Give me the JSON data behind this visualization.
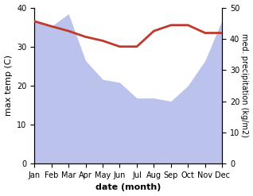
{
  "months": [
    "Jan",
    "Feb",
    "Mar",
    "Apr",
    "May",
    "Jun",
    "Jul",
    "Aug",
    "Sep",
    "Oct",
    "Nov",
    "Dec"
  ],
  "precipitation": [
    46,
    44,
    48,
    33,
    27,
    26,
    21,
    21,
    20,
    25,
    33,
    46
  ],
  "max_temp": [
    36.5,
    35.2,
    34.0,
    32.5,
    31.5,
    30.0,
    30.0,
    34.0,
    35.5,
    35.5,
    33.5,
    33.5
  ],
  "precip_color": "#b0b8e8",
  "temp_color": "#c0392b",
  "temp_ylim": [
    0,
    40
  ],
  "precip_ylim": [
    0,
    50
  ],
  "xlabel": "date (month)",
  "ylabel_left": "max temp (C)",
  "ylabel_right": "med. precipitation (kg/m2)",
  "bg_color": "#ffffff",
  "fig_width": 3.18,
  "fig_height": 2.47,
  "dpi": 100
}
